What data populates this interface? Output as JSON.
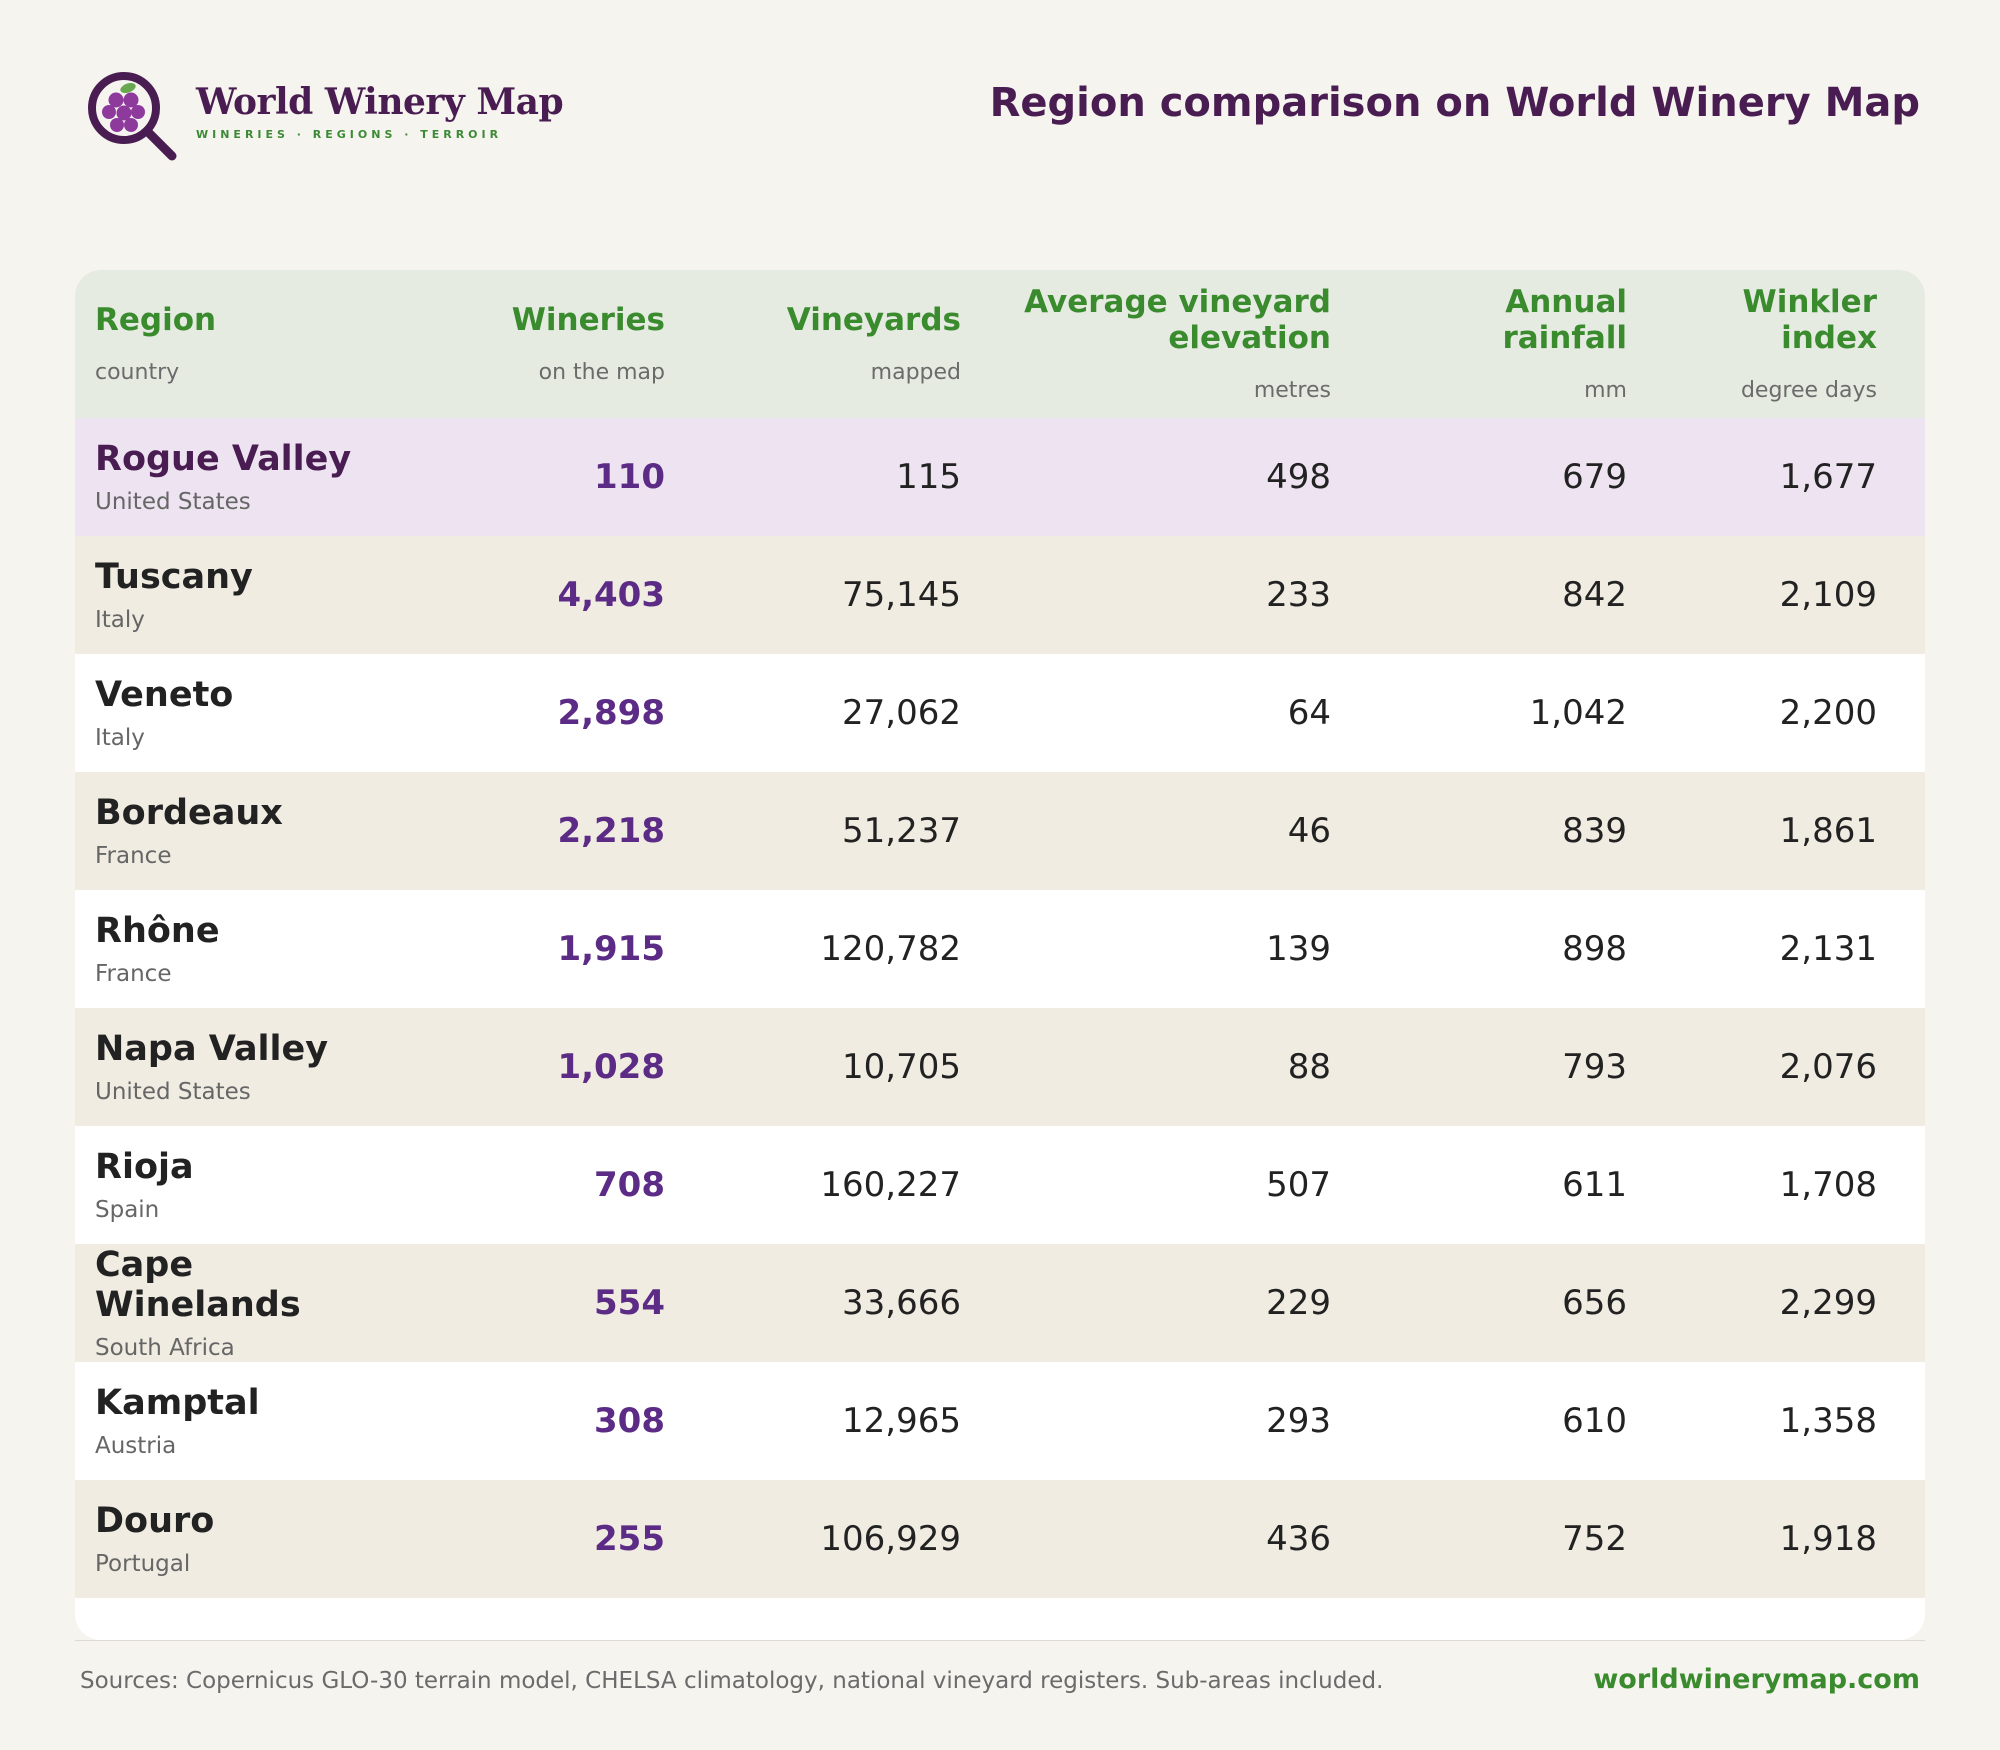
{
  "brand": {
    "name": "World Winery Map",
    "tagline": "WINERIES · REGIONS · TERROIR"
  },
  "page_title": "Region comparison on World Winery Map",
  "table": {
    "columns": [
      {
        "title": "Region",
        "sub": "country"
      },
      {
        "title": "Wineries",
        "sub": "on the map"
      },
      {
        "title": "Vineyards",
        "sub": "mapped"
      },
      {
        "title": "Average vineyard elevation",
        "sub": "metres"
      },
      {
        "title": "Annual rainfall",
        "sub": "mm"
      },
      {
        "title": "Winkler index",
        "sub": "degree days"
      }
    ],
    "rows": [
      {
        "region": "Rogue Valley",
        "country": "United States",
        "wineries": "110",
        "vineyards": "115",
        "elevation": "498",
        "rainfall": "679",
        "winkler": "1,677"
      },
      {
        "region": "Tuscany",
        "country": "Italy",
        "wineries": "4,403",
        "vineyards": "75,145",
        "elevation": "233",
        "rainfall": "842",
        "winkler": "2,109"
      },
      {
        "region": "Veneto",
        "country": "Italy",
        "wineries": "2,898",
        "vineyards": "27,062",
        "elevation": "64",
        "rainfall": "1,042",
        "winkler": "2,200"
      },
      {
        "region": "Bordeaux",
        "country": "France",
        "wineries": "2,218",
        "vineyards": "51,237",
        "elevation": "46",
        "rainfall": "839",
        "winkler": "1,861"
      },
      {
        "region": "Rhône",
        "country": "France",
        "wineries": "1,915",
        "vineyards": "120,782",
        "elevation": "139",
        "rainfall": "898",
        "winkler": "2,131"
      },
      {
        "region": "Napa Valley",
        "country": "United States",
        "wineries": "1,028",
        "vineyards": "10,705",
        "elevation": "88",
        "rainfall": "793",
        "winkler": "2,076"
      },
      {
        "region": "Rioja",
        "country": "Spain",
        "wineries": "708",
        "vineyards": "160,227",
        "elevation": "507",
        "rainfall": "611",
        "winkler": "1,708"
      },
      {
        "region": "Cape Winelands",
        "country": "South Africa",
        "wineries": "554",
        "vineyards": "33,666",
        "elevation": "229",
        "rainfall": "656",
        "winkler": "2,299"
      },
      {
        "region": "Kamptal",
        "country": "Austria",
        "wineries": "308",
        "vineyards": "12,965",
        "elevation": "293",
        "rainfall": "610",
        "winkler": "1,358"
      },
      {
        "region": "Douro",
        "country": "Portugal",
        "wineries": "255",
        "vineyards": "106,929",
        "elevation": "436",
        "rainfall": "752",
        "winkler": "1,918"
      }
    ]
  },
  "footer": {
    "sources": "Sources: Copernicus GLO-30 terrain model, CHELSA climatology, national vineyard registers. Sub-areas included.",
    "site": "worldwinerymap.com"
  },
  "colors": {
    "brand_purple": "#4a1d52",
    "accent_green": "#3a8a2e",
    "wineries_purple": "#5b2b86",
    "header_bg": "#e6ebe2",
    "highlight_row": "#ede3f1",
    "alt_row": "#f0ece2"
  },
  "icons": {
    "logo": "grapes-magnifier-icon"
  }
}
